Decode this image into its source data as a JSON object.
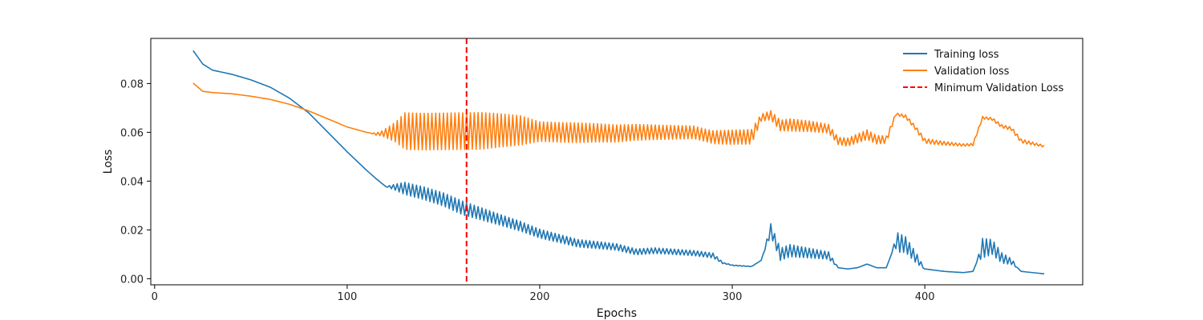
{
  "chart_data": {
    "type": "line",
    "title": "",
    "xlabel": "Epochs",
    "ylabel": "Loss",
    "xlim": [
      -2,
      482
    ],
    "ylim": [
      -0.0025,
      0.0985
    ],
    "xticks": [
      0,
      100,
      200,
      300,
      400
    ],
    "xtick_labels": [
      "0",
      "100",
      "200",
      "300",
      "400"
    ],
    "yticks": [
      0.0,
      0.02,
      0.04,
      0.06,
      0.08
    ],
    "ytick_labels": [
      "0.00",
      "0.02",
      "0.04",
      "0.06",
      "0.08"
    ],
    "grid": false,
    "legend_position": "top-right",
    "series": [
      {
        "name": "Training loss",
        "color": "#1f77b4",
        "x_start": 20,
        "x_end": 462,
        "anchors": [
          [
            20,
            0.0935
          ],
          [
            25,
            0.088
          ],
          [
            30,
            0.0855
          ],
          [
            40,
            0.0838
          ],
          [
            50,
            0.0815
          ],
          [
            60,
            0.0785
          ],
          [
            70,
            0.074
          ],
          [
            80,
            0.068
          ],
          [
            90,
            0.06
          ],
          [
            100,
            0.052
          ],
          [
            110,
            0.0445
          ],
          [
            115,
            0.041
          ],
          [
            120,
            0.0378
          ],
          [
            125,
            0.0375
          ],
          [
            130,
            0.037
          ],
          [
            140,
            0.035
          ],
          [
            150,
            0.0325
          ],
          [
            160,
            0.029
          ],
          [
            170,
            0.0265
          ],
          [
            180,
            0.024
          ],
          [
            190,
            0.0215
          ],
          [
            200,
            0.0185
          ],
          [
            210,
            0.0165
          ],
          [
            220,
            0.0145
          ],
          [
            230,
            0.0138
          ],
          [
            240,
            0.013
          ],
          [
            250,
            0.011
          ],
          [
            260,
            0.0115
          ],
          [
            270,
            0.011
          ],
          [
            280,
            0.0105
          ],
          [
            290,
            0.0095
          ],
          [
            295,
            0.0065
          ],
          [
            300,
            0.0055
          ],
          [
            310,
            0.005
          ],
          [
            315,
            0.0075
          ],
          [
            320,
            0.02
          ],
          [
            325,
            0.01
          ],
          [
            330,
            0.0115
          ],
          [
            340,
            0.0105
          ],
          [
            350,
            0.0095
          ],
          [
            355,
            0.0045
          ],
          [
            360,
            0.004
          ],
          [
            365,
            0.0045
          ],
          [
            370,
            0.006
          ],
          [
            375,
            0.0045
          ],
          [
            380,
            0.0045
          ],
          [
            385,
            0.015
          ],
          [
            390,
            0.014
          ],
          [
            395,
            0.009
          ],
          [
            400,
            0.004
          ],
          [
            410,
            0.003
          ],
          [
            420,
            0.0025
          ],
          [
            425,
            0.003
          ],
          [
            430,
            0.0125
          ],
          [
            435,
            0.013
          ],
          [
            440,
            0.0085
          ],
          [
            445,
            0.007
          ],
          [
            450,
            0.003
          ],
          [
            462,
            0.002
          ]
        ],
        "oscillation": [
          [
            0,
            0
          ],
          [
            120,
            0
          ],
          [
            124,
            0.001
          ],
          [
            130,
            0.0025
          ],
          [
            160,
            0.0028
          ],
          [
            180,
            0.0022
          ],
          [
            200,
            0.0018
          ],
          [
            215,
            0.0016
          ],
          [
            250,
            0.0012
          ],
          [
            290,
            0.001
          ],
          [
            296,
            0.0002
          ],
          [
            316,
            0
          ],
          [
            320,
            0.0025
          ],
          [
            330,
            0.0025
          ],
          [
            350,
            0.0015
          ],
          [
            355,
            0
          ],
          [
            383,
            0
          ],
          [
            386,
            0.004
          ],
          [
            396,
            0.002
          ],
          [
            400,
            0
          ],
          [
            427,
            0
          ],
          [
            430,
            0.004
          ],
          [
            446,
            0.001
          ],
          [
            448,
            0
          ],
          [
            470,
            0
          ]
        ]
      },
      {
        "name": "Validation loss",
        "color": "#ff7f0e",
        "x_start": 20,
        "x_end": 462,
        "anchors": [
          [
            20,
            0.0802
          ],
          [
            25,
            0.0768
          ],
          [
            30,
            0.0763
          ],
          [
            40,
            0.0758
          ],
          [
            50,
            0.0748
          ],
          [
            60,
            0.0735
          ],
          [
            70,
            0.0715
          ],
          [
            80,
            0.0688
          ],
          [
            90,
            0.0655
          ],
          [
            100,
            0.0622
          ],
          [
            110,
            0.06
          ],
          [
            115,
            0.0593
          ],
          [
            120,
            0.0597
          ],
          [
            130,
            0.0605
          ],
          [
            140,
            0.0603
          ],
          [
            150,
            0.0604
          ],
          [
            160,
            0.0605
          ],
          [
            170,
            0.0606
          ],
          [
            180,
            0.0608
          ],
          [
            190,
            0.0608
          ],
          [
            200,
            0.0603
          ],
          [
            210,
            0.06
          ],
          [
            220,
            0.0598
          ],
          [
            230,
            0.0598
          ],
          [
            240,
            0.0595
          ],
          [
            250,
            0.06
          ],
          [
            260,
            0.06
          ],
          [
            270,
            0.06
          ],
          [
            280,
            0.06
          ],
          [
            290,
            0.058
          ],
          [
            300,
            0.058
          ],
          [
            310,
            0.0582
          ],
          [
            315,
            0.066
          ],
          [
            320,
            0.067
          ],
          [
            325,
            0.0628
          ],
          [
            330,
            0.063
          ],
          [
            340,
            0.0625
          ],
          [
            350,
            0.0615
          ],
          [
            355,
            0.0565
          ],
          [
            360,
            0.056
          ],
          [
            365,
            0.0575
          ],
          [
            370,
            0.059
          ],
          [
            375,
            0.057
          ],
          [
            380,
            0.057
          ],
          [
            385,
            0.0675
          ],
          [
            390,
            0.0665
          ],
          [
            395,
            0.062
          ],
          [
            400,
            0.0565
          ],
          [
            410,
            0.0555
          ],
          [
            420,
            0.0548
          ],
          [
            425,
            0.055
          ],
          [
            430,
            0.066
          ],
          [
            435,
            0.0655
          ],
          [
            440,
            0.0625
          ],
          [
            445,
            0.0615
          ],
          [
            450,
            0.0565
          ],
          [
            462,
            0.0543
          ]
        ],
        "oscillation": [
          [
            0,
            0
          ],
          [
            112,
            0
          ],
          [
            118,
            0.001
          ],
          [
            125,
            0.004
          ],
          [
            130,
            0.0075
          ],
          [
            170,
            0.0075
          ],
          [
            190,
            0.006
          ],
          [
            200,
            0.004
          ],
          [
            220,
            0.004
          ],
          [
            240,
            0.0035
          ],
          [
            260,
            0.003
          ],
          [
            285,
            0.0025
          ],
          [
            295,
            0.0028
          ],
          [
            310,
            0.003
          ],
          [
            315,
            0.0015
          ],
          [
            330,
            0.0025
          ],
          [
            345,
            0.002
          ],
          [
            355,
            0.0015
          ],
          [
            370,
            0.002
          ],
          [
            380,
            0.0015
          ],
          [
            385,
            0.0005
          ],
          [
            400,
            0.001
          ],
          [
            420,
            0.0005
          ],
          [
            430,
            0.0005
          ],
          [
            450,
            0.0008
          ],
          [
            462,
            0.0004
          ],
          [
            470,
            0
          ]
        ]
      },
      {
        "name": "Minimum Validation Loss",
        "color": "#ff0000",
        "style": "dashed",
        "type": "vline",
        "x": 162
      }
    ]
  }
}
